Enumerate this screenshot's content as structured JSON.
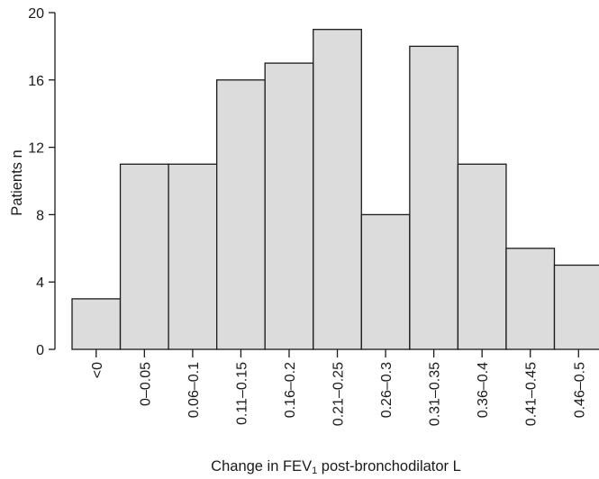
{
  "chart_data": {
    "type": "bar",
    "categories": [
      "<0",
      "0–0.05",
      "0.06–0.1",
      "0.11–0.15",
      "0.16–0.2",
      "0.21–0.25",
      "0.26–0.3",
      "0.31–0.35",
      "0.36–0.4",
      "0.41–0.45",
      "0.46–0.5"
    ],
    "values": [
      3,
      11,
      11,
      16,
      17,
      19,
      8,
      18,
      11,
      6,
      5
    ],
    "title": "",
    "xlabel": "Change in FEV1 post-bronchodilator L",
    "ylabel": "Patients n",
    "ylim": [
      0,
      20
    ],
    "yticks": [
      0,
      4,
      8,
      12,
      16,
      20
    ],
    "bar_color": "#dcdcdc",
    "grid": false
  }
}
